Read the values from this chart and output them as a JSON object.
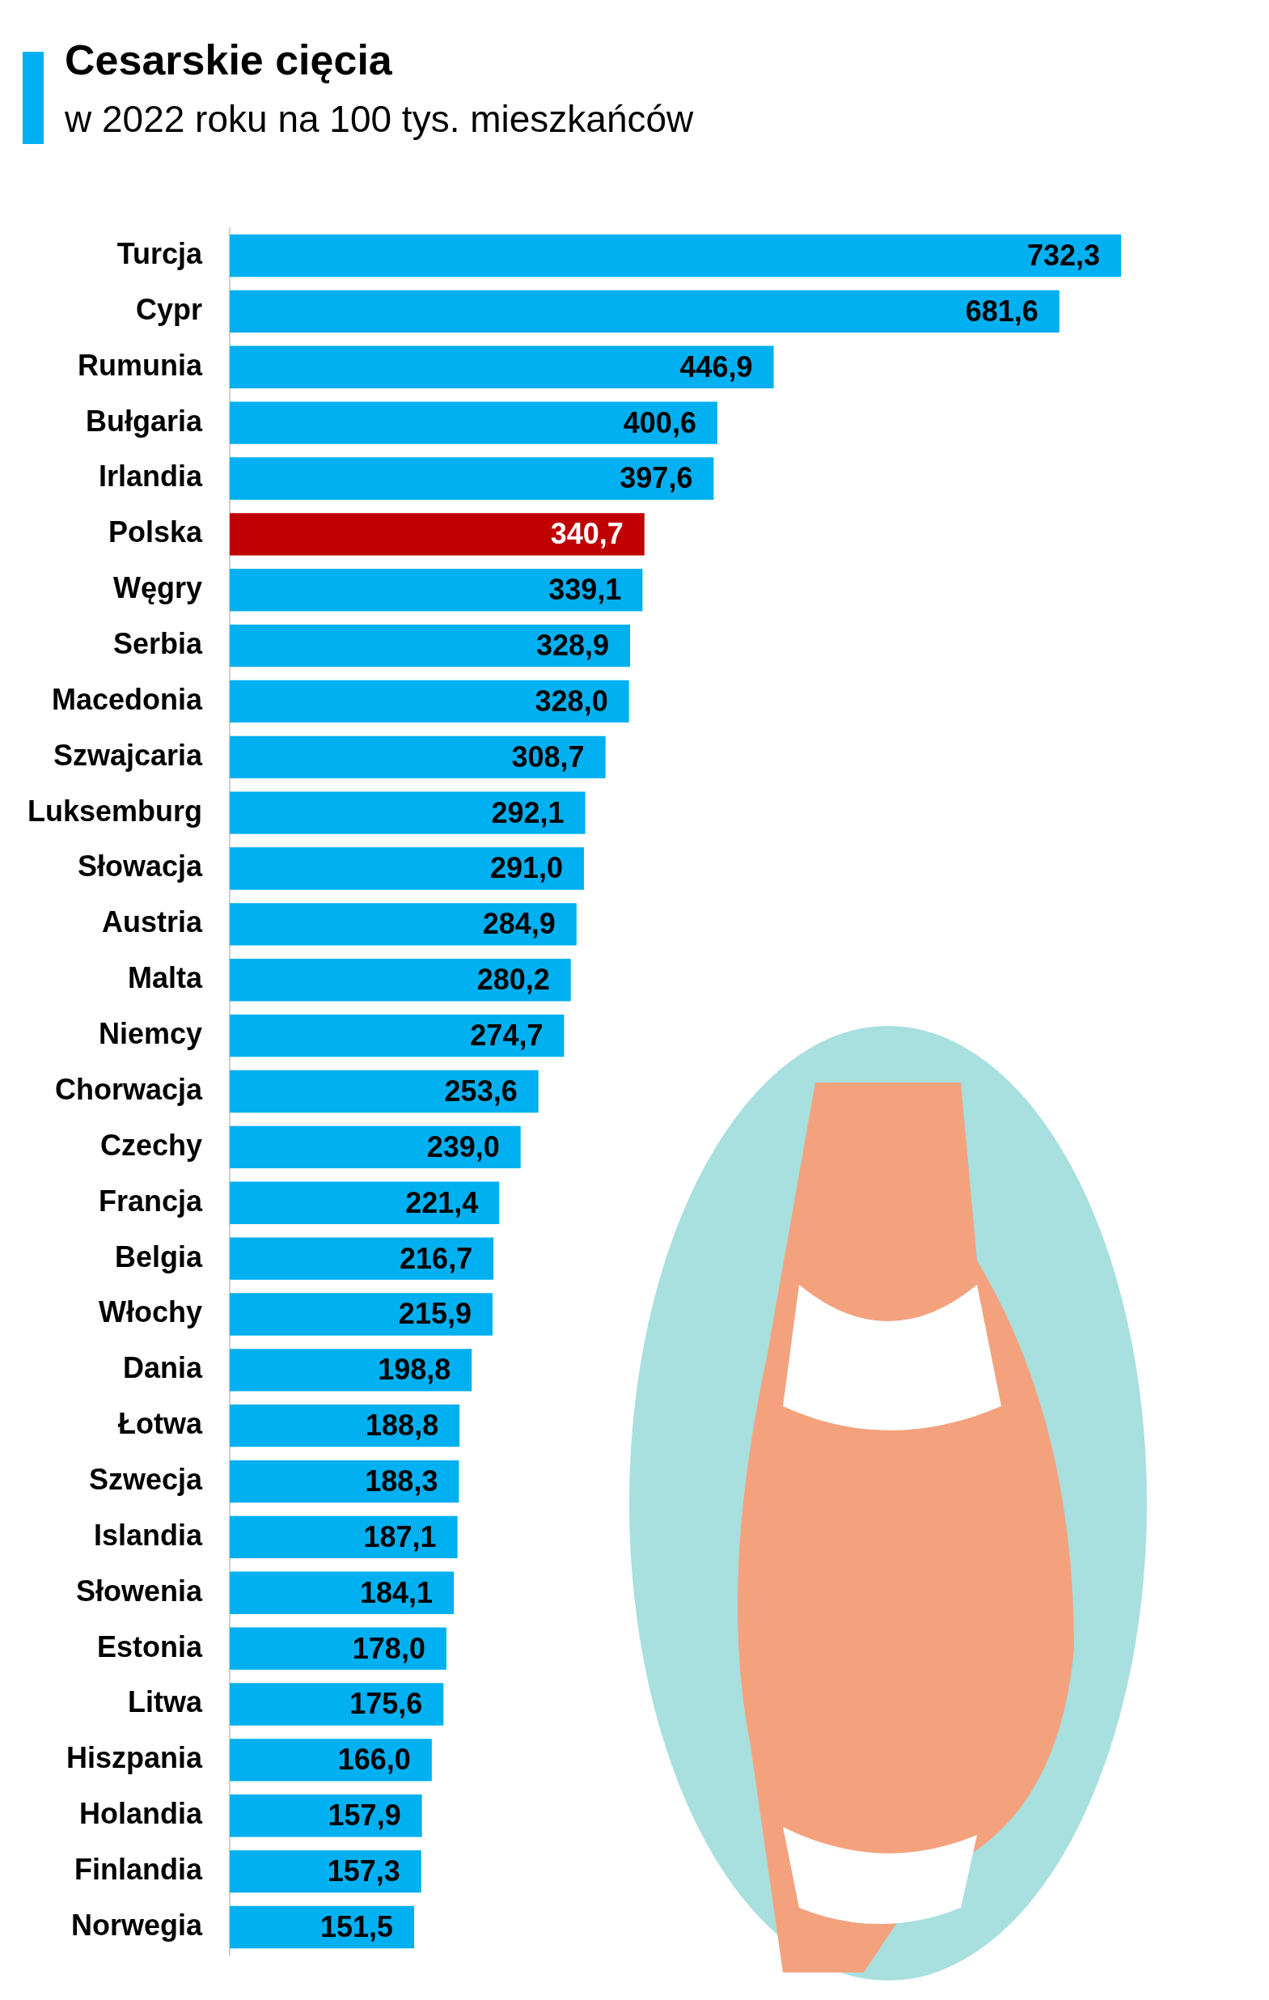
{
  "chart_data": {
    "type": "bar",
    "orientation": "horizontal",
    "title": "Cesarskie cięcia",
    "subtitle": "w 2022 roku na 100 tys. mieszkańców",
    "categories": [
      "Turcja",
      "Cypr",
      "Rumunia",
      "Bułgaria",
      "Irlandia",
      "Polska",
      "Węgry",
      "Serbia",
      "Macedonia",
      "Szwajcaria",
      "Luksemburg",
      "Słowacja",
      "Austria",
      "Malta",
      "Niemcy",
      "Chorwacja",
      "Czechy",
      "Francja",
      "Belgia",
      "Włochy",
      "Dania",
      "Łotwa",
      "Szwecja",
      "Islandia",
      "Słowenia",
      "Estonia",
      "Litwa",
      "Hiszpania",
      "Holandia",
      "Finlandia",
      "Norwegia"
    ],
    "values": [
      732.3,
      681.6,
      446.9,
      400.6,
      397.6,
      340.7,
      339.1,
      328.9,
      328.0,
      308.7,
      292.1,
      291.0,
      284.9,
      280.2,
      274.7,
      253.6,
      239.0,
      221.4,
      216.7,
      215.9,
      198.8,
      188.8,
      188.3,
      187.1,
      184.1,
      178.0,
      175.6,
      166.0,
      157.9,
      157.3,
      151.5
    ],
    "value_labels": [
      "732,3",
      "681,6",
      "446,9",
      "400,6",
      "397,6",
      "340,7",
      "339,1",
      "328,9",
      "328,0",
      "308,7",
      "292,1",
      "291,0",
      "284,9",
      "280,2",
      "274,7",
      "253,6",
      "239,0",
      "221,4",
      "216,7",
      "215,9",
      "198,8",
      "188,8",
      "188,3",
      "187,1",
      "184,1",
      "178,0",
      "175,6",
      "166,0",
      "157,9",
      "157,3",
      "151,5"
    ],
    "colors": [
      "#00b0f0",
      "#00b0f0",
      "#00b0f0",
      "#00b0f0",
      "#00b0f0",
      "#c00000",
      "#00b0f0",
      "#00b0f0",
      "#00b0f0",
      "#00b0f0",
      "#00b0f0",
      "#00b0f0",
      "#00b0f0",
      "#00b0f0",
      "#00b0f0",
      "#00b0f0",
      "#00b0f0",
      "#00b0f0",
      "#00b0f0",
      "#00b0f0",
      "#00b0f0",
      "#00b0f0",
      "#00b0f0",
      "#00b0f0",
      "#00b0f0",
      "#00b0f0",
      "#00b0f0",
      "#00b0f0",
      "#00b0f0",
      "#00b0f0",
      "#00b0f0"
    ],
    "legend": false,
    "tick_labels": "y"
  }
}
